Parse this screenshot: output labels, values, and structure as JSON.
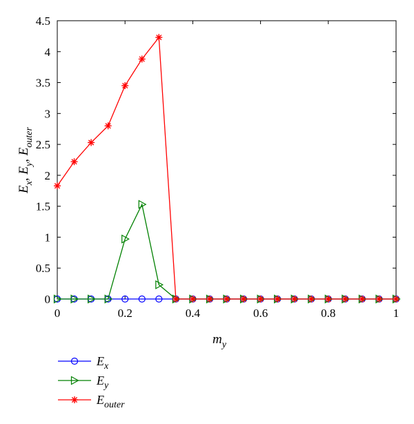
{
  "chart_data": {
    "type": "line",
    "xlabel": "m",
    "xlabel_sub": "y",
    "ylabel_parts": [
      {
        "main": "E",
        "sub": "x",
        "sep": ", "
      },
      {
        "main": "E",
        "sub": "y",
        "sep": ", "
      },
      {
        "main": "E",
        "sub": "outer",
        "sep": ""
      }
    ],
    "xlim": [
      0,
      1
    ],
    "ylim": [
      0,
      4.5
    ],
    "xticks": [
      0,
      0.2,
      0.4,
      0.6,
      0.8,
      1
    ],
    "xtick_labels": [
      "0",
      "0.2",
      "0.4",
      "0.6",
      "0.8",
      "1"
    ],
    "yticks": [
      0,
      0.5,
      1,
      1.5,
      2,
      2.5,
      3,
      3.5,
      4,
      4.5
    ],
    "ytick_labels": [
      "0",
      "0.5",
      "1",
      "1.5",
      "2",
      "2.5",
      "3",
      "3.5",
      "4",
      "4.5"
    ],
    "grid": false,
    "legend_position": "bottom-left, outside plot",
    "x": [
      0,
      0.05,
      0.1,
      0.15,
      0.2,
      0.25,
      0.3,
      0.35,
      0.4,
      0.45,
      0.5,
      0.55,
      0.6,
      0.65,
      0.7,
      0.75,
      0.8,
      0.85,
      0.9,
      0.95,
      1
    ],
    "series": [
      {
        "name": "E",
        "name_sub": "x",
        "color": "#0000ff",
        "marker": "circle",
        "values": [
          0,
          0,
          0,
          0,
          0,
          0,
          0,
          0,
          0,
          0,
          0,
          0,
          0,
          0,
          0,
          0,
          0,
          0,
          0,
          0,
          0
        ]
      },
      {
        "name": "E",
        "name_sub": "y",
        "color": "#008000",
        "marker": "triangle-right",
        "values": [
          0,
          0,
          0,
          0,
          0.97,
          1.53,
          0.23,
          0,
          0,
          0,
          0,
          0,
          0,
          0,
          0,
          0,
          0,
          0,
          0,
          0,
          0
        ]
      },
      {
        "name": "E",
        "name_sub": "outer",
        "color": "#ff0000",
        "marker": "asterisk",
        "values": [
          1.83,
          2.22,
          2.53,
          2.8,
          3.45,
          3.88,
          4.23,
          0,
          0,
          0,
          0,
          0,
          0,
          0,
          0,
          0,
          0,
          0,
          0,
          0,
          0
        ]
      }
    ]
  }
}
